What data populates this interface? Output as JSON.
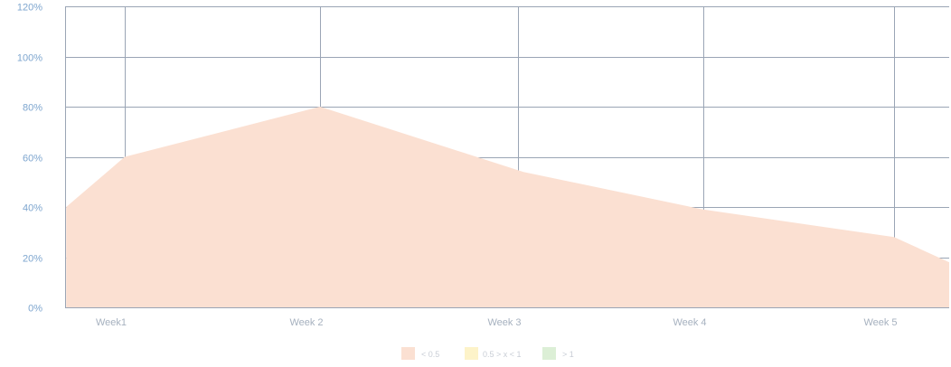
{
  "chart_data": {
    "type": "area",
    "title": "",
    "xlabel": "",
    "ylabel": "",
    "y_ticks": [
      "0%",
      "20%",
      "40%",
      "60%",
      "80%",
      "100%",
      "120%"
    ],
    "ylim": [
      0,
      120
    ],
    "categories": [
      "Week1",
      "Week 2",
      "Week 3",
      "Week 4",
      "Week 5"
    ],
    "x_range": [
      -0.3,
      4.3
    ],
    "series": [
      {
        "x": [
          -0.3,
          0,
          1,
          2.03,
          3,
          4,
          4.3
        ],
        "values": [
          40,
          60,
          80,
          54,
          39,
          28,
          18
        ],
        "color": "#fbe0d2"
      }
    ],
    "grid": true,
    "legend_position": "bottom-center",
    "legend": [
      {
        "label": "< 0.5",
        "color": "#fbe0d2"
      },
      {
        "label": "0.5 > x < 1",
        "color": "#fdf3c9"
      },
      {
        "label": "> 1",
        "color": "#dcefd6"
      }
    ]
  }
}
